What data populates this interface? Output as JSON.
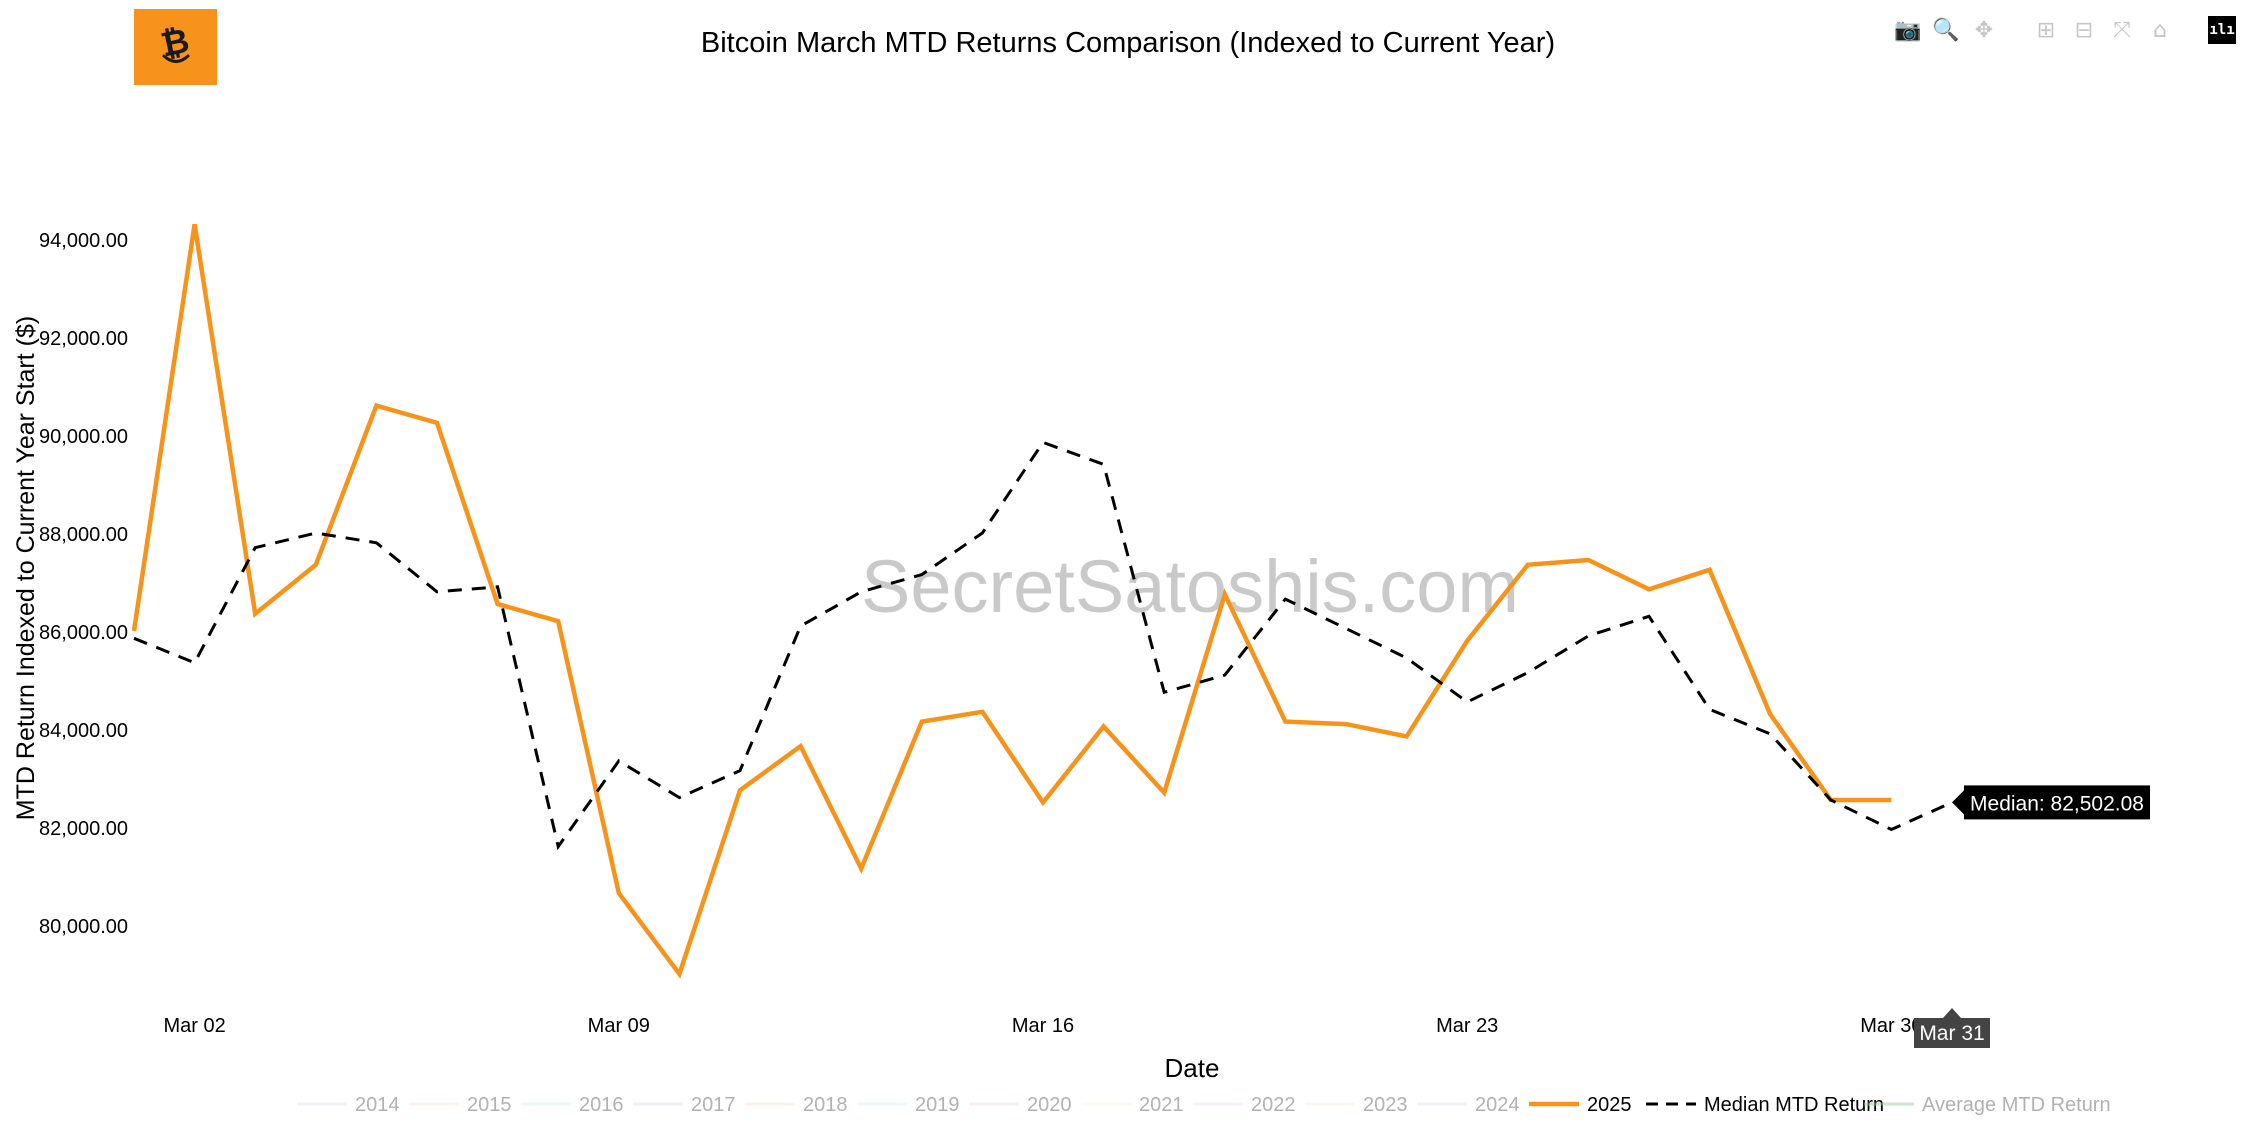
{
  "logo": {
    "icon": "bitcoin-smile-icon",
    "color": "#f7931a"
  },
  "modebar": [
    {
      "name": "download-png-button",
      "icon": "camera-icon",
      "glyph": "📷"
    },
    {
      "name": "zoom-button",
      "icon": "magnifier-icon",
      "glyph": "🔍",
      "active": true
    },
    {
      "name": "pan-button",
      "icon": "pan-arrows-icon",
      "glyph": "✥"
    },
    {
      "name": "zoom-in-button",
      "icon": "plus-square-icon",
      "glyph": "⊞"
    },
    {
      "name": "zoom-out-button",
      "icon": "minus-square-icon",
      "glyph": "⊟"
    },
    {
      "name": "autoscale-button",
      "icon": "autoscale-icon",
      "glyph": "⤧"
    },
    {
      "name": "reset-axes-button",
      "icon": "home-icon",
      "glyph": "⌂"
    }
  ],
  "modebar_logo": {
    "icon": "plotly-logo-icon",
    "glyph": "ılı"
  },
  "chart_data": {
    "type": "line",
    "title": "Bitcoin March MTD Returns Comparison (Indexed to Current Year)",
    "xlabel": "Date",
    "ylabel": "MTD Return Indexed to Current Year Start ($)",
    "x_ticks": [
      "Mar 02",
      "Mar 09",
      "Mar 16",
      "Mar 23",
      "Mar 30"
    ],
    "ylim": [
      78200,
      95600
    ],
    "y_ticks": [
      80000,
      82000,
      84000,
      86000,
      88000,
      90000,
      92000,
      94000
    ],
    "y_tick_labels": [
      "80,000.00",
      "82,000.00",
      "84,000.00",
      "86,000.00",
      "88,000.00",
      "90,000.00",
      "92,000.00",
      "94,000.00"
    ],
    "grid": false,
    "watermark": "SecretSatoshis.com",
    "days": [
      1,
      2,
      3,
      4,
      5,
      6,
      7,
      8,
      9,
      10,
      11,
      12,
      13,
      14,
      15,
      16,
      17,
      18,
      19,
      20,
      21,
      22,
      23,
      24,
      25,
      26,
      27,
      28,
      29,
      30,
      31
    ],
    "series": [
      {
        "name": "2014",
        "color": "#e4e4fb",
        "dash": "solid",
        "hidden": true,
        "values": []
      },
      {
        "name": "2015",
        "color": "#fde2dc",
        "dash": "solid",
        "hidden": true,
        "values": []
      },
      {
        "name": "2016",
        "color": "#d5f5ef",
        "dash": "solid",
        "hidden": true,
        "values": []
      },
      {
        "name": "2017",
        "color": "#ebdcfd",
        "dash": "solid",
        "hidden": true,
        "values": []
      },
      {
        "name": "2018",
        "color": "#fde5d6",
        "dash": "solid",
        "hidden": true,
        "values": []
      },
      {
        "name": "2019",
        "color": "#d8f3fb",
        "dash": "solid",
        "hidden": true,
        "values": []
      },
      {
        "name": "2020",
        "color": "#fbdde8",
        "dash": "solid",
        "hidden": true,
        "values": []
      },
      {
        "name": "2021",
        "color": "#eef8df",
        "dash": "solid",
        "hidden": true,
        "values": []
      },
      {
        "name": "2022",
        "color": "#f8defc",
        "dash": "solid",
        "hidden": true,
        "values": []
      },
      {
        "name": "2023",
        "color": "#fdeee0",
        "dash": "solid",
        "hidden": true,
        "values": []
      },
      {
        "name": "2024",
        "color": "#e4e4fb",
        "dash": "solid",
        "hidden": true,
        "values": []
      },
      {
        "name": "2025",
        "color": "#f7931a",
        "dash": "solid",
        "hidden": false,
        "values": [
          86000,
          94300,
          86350,
          87350,
          90600,
          90250,
          86550,
          86200,
          80650,
          79000,
          82750,
          83650,
          81150,
          84150,
          84350,
          82500,
          84050,
          82700,
          86750,
          84150,
          84100,
          83850,
          85800,
          87350,
          87450,
          86850,
          87250,
          84300,
          82550,
          82550
        ]
      },
      {
        "name": "Median MTD Return",
        "color": "#000000",
        "dash": "dash",
        "hidden": false,
        "values": [
          85850,
          85350,
          87700,
          88000,
          87800,
          86800,
          86900,
          81600,
          83350,
          82600,
          83150,
          86100,
          86800,
          87150,
          88000,
          89850,
          89400,
          84750,
          85100,
          86650,
          86050,
          85450,
          84550,
          85150,
          85900,
          86300,
          84400,
          83900,
          82550,
          81950,
          82502.08
        ]
      },
      {
        "name": "Average MTD Return",
        "color": "#9acd9a",
        "dash": "solid",
        "hidden": true,
        "values": []
      }
    ],
    "hover": {
      "x_label": "Mar 31",
      "text": "Median: 82,502.08",
      "value": 82502.08,
      "series": "Median MTD Return"
    }
  }
}
